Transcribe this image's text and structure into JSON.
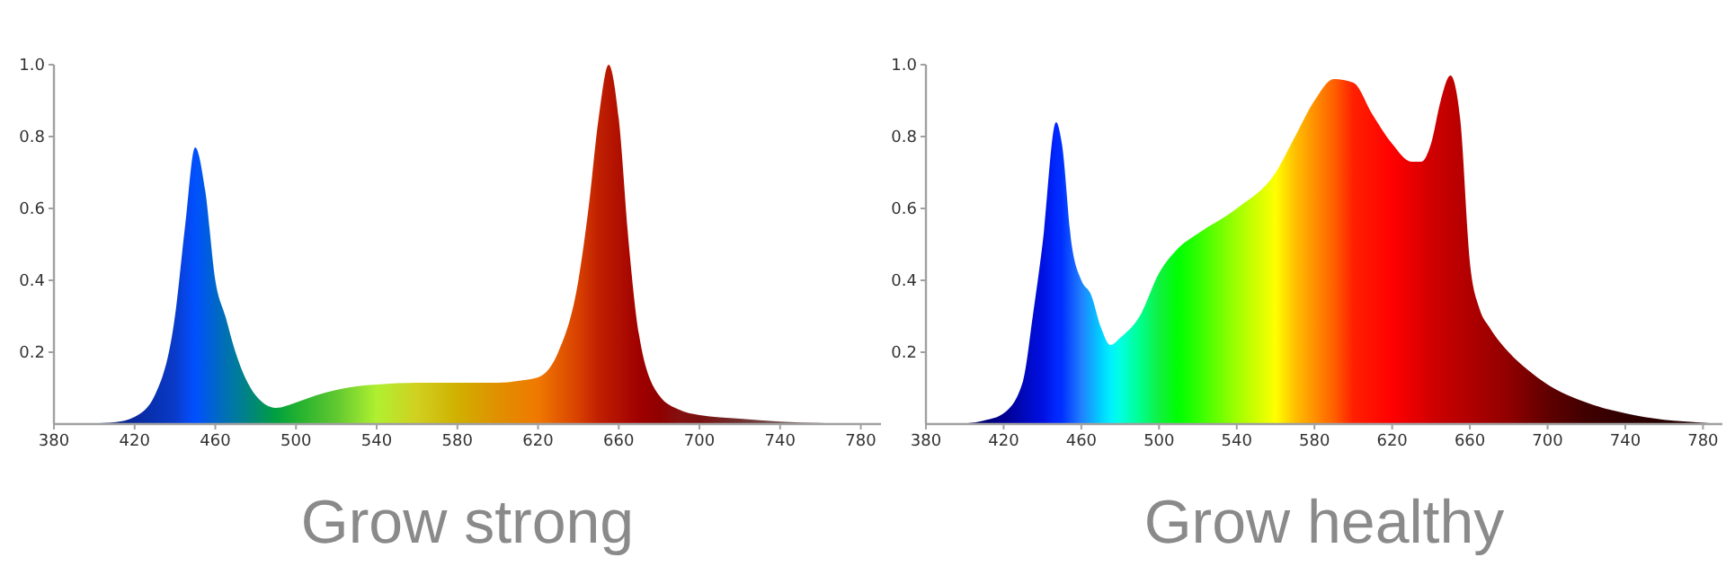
{
  "chart_data": [
    {
      "type": "area",
      "title": "Grow strong",
      "xlim": [
        380,
        790
      ],
      "xticks": [
        380,
        420,
        460,
        500,
        540,
        580,
        620,
        660,
        700,
        740,
        780
      ],
      "ylim": [
        0,
        1
      ],
      "yticks": [
        0.2,
        0.4,
        0.6,
        0.8,
        {
          "value": 1,
          "label": "1.0"
        }
      ],
      "series": [
        {
          "x": [
            380,
            400,
            410,
            420,
            430,
            440,
            445,
            450,
            455,
            460,
            465,
            470,
            480,
            490,
            500,
            510,
            520,
            530,
            540,
            560,
            580,
            600,
            610,
            620,
            630,
            640,
            645,
            650,
            655,
            660,
            665,
            670,
            680,
            690,
            700,
            720,
            740,
            760,
            780,
            790
          ],
          "values": [
            0,
            0.002,
            0.005,
            0.02,
            0.08,
            0.3,
            0.55,
            0.77,
            0.65,
            0.4,
            0.3,
            0.2,
            0.08,
            0.045,
            0.06,
            0.08,
            0.095,
            0.105,
            0.11,
            0.115,
            0.115,
            0.115,
            0.12,
            0.13,
            0.2,
            0.4,
            0.6,
            0.85,
            1.0,
            0.85,
            0.5,
            0.25,
            0.08,
            0.04,
            0.025,
            0.015,
            0.007,
            0.003,
            0,
            0
          ],
          "colors": [
            "#10206a",
            "#10207a",
            "#0c2488",
            "#0a2a9e",
            "#0832b4",
            "#0a3ac8",
            "#0646e8",
            "#0050ff",
            "#005ae6",
            "#0066cc",
            "#0070b4",
            "#007aa0",
            "#008a70",
            "#00a040",
            "#20b030",
            "#40bc30",
            "#60c830",
            "#88dc30",
            "#b0f030",
            "#d0d020",
            "#d0b000",
            "#e09000",
            "#e88400",
            "#f07800",
            "#e45c00",
            "#d84000",
            "#cc3000",
            "#c02000",
            "#b81800",
            "#b01000",
            "#a80800",
            "#a00000",
            "#900000",
            "#841010",
            "#7a1010",
            "#703030",
            "#705050",
            "#786060",
            "#806060",
            "#806060"
          ]
        }
      ]
    },
    {
      "type": "area",
      "title": "Grow healthy",
      "xlim": [
        380,
        790
      ],
      "xticks": [
        380,
        420,
        460,
        500,
        540,
        580,
        620,
        660,
        700,
        740,
        780
      ],
      "ylim": [
        0,
        1
      ],
      "yticks": [
        0.2,
        0.4,
        0.6,
        0.8,
        {
          "value": 1,
          "label": "1.0"
        }
      ],
      "series": [
        {
          "x": [
            380,
            400,
            410,
            420,
            430,
            435,
            440,
            447,
            450,
            455,
            460,
            465,
            470,
            475,
            480,
            490,
            500,
            510,
            520,
            540,
            560,
            570,
            580,
            590,
            600,
            610,
            620,
            630,
            635,
            640,
            645,
            650,
            655,
            660,
            665,
            670,
            680,
            690,
            700,
            720,
            740,
            760,
            780,
            790
          ],
          "values": [
            0,
            0.002,
            0.01,
            0.03,
            0.12,
            0.3,
            0.5,
            0.84,
            0.78,
            0.5,
            0.4,
            0.36,
            0.27,
            0.22,
            0.24,
            0.3,
            0.42,
            0.49,
            0.53,
            0.6,
            0.7,
            0.8,
            0.9,
            0.96,
            0.95,
            0.86,
            0.78,
            0.73,
            0.73,
            0.78,
            0.9,
            0.97,
            0.85,
            0.45,
            0.32,
            0.27,
            0.2,
            0.15,
            0.11,
            0.06,
            0.03,
            0.012,
            0.004,
            0
          ],
          "colors": [
            "#000030",
            "#000060",
            "#000078",
            "#000090",
            "#0008b8",
            "#000cd0",
            "#0010e0",
            "#0028ff",
            "#0030ff",
            "#1058ff",
            "#2080ff",
            "#10a8ff",
            "#00d0ff",
            "#00f0ff",
            "#00ffe0",
            "#00ff90",
            "#10f040",
            "#00ff00",
            "#30ff00",
            "#a0ff00",
            "#ffff00",
            "#ffc000",
            "#ff9000",
            "#ff6000",
            "#ff2000",
            "#ff1000",
            "#ff0000",
            "#e80000",
            "#e00000",
            "#d00000",
            "#c80000",
            "#c00000",
            "#b80000",
            "#b00000",
            "#a80000",
            "#a00000",
            "#900000",
            "#780000",
            "#600000",
            "#400000",
            "#300000",
            "#280000",
            "#200000",
            "#200000"
          ]
        }
      ]
    }
  ]
}
